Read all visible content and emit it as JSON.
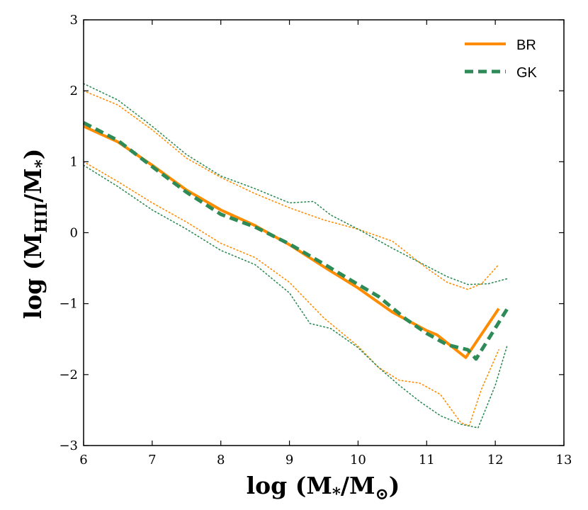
{
  "chart_data": {
    "type": "line",
    "title": "",
    "xlabel": {
      "prefix": "log (M",
      "sub1": "*",
      "mid": "/M",
      "sub2": "⊙",
      "suffix": ")"
    },
    "ylabel": {
      "prefix": "log (M",
      "sub1": "HII",
      "mid": "/M",
      "sub2": "*",
      "suffix": ")"
    },
    "xlim": [
      6,
      13
    ],
    "ylim": [
      -3,
      3
    ],
    "xticks": [
      6,
      7,
      8,
      9,
      10,
      11,
      12,
      13
    ],
    "yticks": [
      -3,
      -2,
      -1,
      0,
      1,
      2,
      3
    ],
    "xtick_labels": [
      "6",
      "7",
      "8",
      "9",
      "10",
      "11",
      "12",
      "13"
    ],
    "ytick_labels": [
      "−3",
      "−2",
      "−1",
      "0",
      "1",
      "2",
      "3"
    ],
    "grid": false,
    "legend_position": "top-right",
    "colors": {
      "BR": "#ff8c00",
      "GK": "#2e8b57"
    },
    "series": [
      {
        "name": "BR",
        "role": "median",
        "style": "solid",
        "x": [
          6.0,
          6.5,
          7.0,
          7.5,
          8.0,
          8.5,
          9.0,
          9.5,
          10.0,
          10.5,
          11.0,
          11.15,
          11.57,
          12.05
        ],
        "y": [
          1.5,
          1.28,
          0.95,
          0.6,
          0.32,
          0.1,
          -0.17,
          -0.48,
          -0.78,
          -1.12,
          -1.38,
          -1.44,
          -1.76,
          -1.07
        ]
      },
      {
        "name": "GK",
        "role": "median",
        "style": "dashed",
        "x": [
          6.0,
          6.5,
          7.0,
          7.5,
          8.0,
          8.5,
          9.0,
          9.5,
          10.0,
          10.3,
          10.7,
          11.0,
          11.3,
          11.6,
          11.72,
          12.17
        ],
        "y": [
          1.55,
          1.3,
          0.93,
          0.57,
          0.26,
          0.08,
          -0.16,
          -0.44,
          -0.73,
          -0.9,
          -1.22,
          -1.42,
          -1.58,
          -1.65,
          -1.78,
          -1.08
        ]
      },
      {
        "name": "BR",
        "role": "upper-percentile",
        "style": "dotted",
        "x": [
          6.0,
          6.5,
          7.0,
          7.5,
          8.0,
          8.5,
          9.0,
          9.5,
          10.0,
          10.5,
          11.0,
          11.3,
          11.6,
          11.8,
          12.05
        ],
        "y": [
          2.0,
          1.8,
          1.45,
          1.05,
          0.78,
          0.55,
          0.35,
          0.18,
          0.05,
          -0.12,
          -0.5,
          -0.7,
          -0.8,
          -0.72,
          -0.45
        ]
      },
      {
        "name": "BR",
        "role": "lower-percentile",
        "style": "dotted",
        "x": [
          6.0,
          6.5,
          7.0,
          7.5,
          8.0,
          8.5,
          9.0,
          9.5,
          10.0,
          10.3,
          10.6,
          10.9,
          11.2,
          11.5,
          11.62,
          11.8,
          12.05
        ],
        "y": [
          1.0,
          0.72,
          0.42,
          0.15,
          -0.15,
          -0.35,
          -0.7,
          -1.2,
          -1.6,
          -1.9,
          -2.08,
          -2.12,
          -2.28,
          -2.68,
          -2.72,
          -2.2,
          -1.65
        ]
      },
      {
        "name": "GK",
        "role": "upper-percentile",
        "style": "dotted",
        "x": [
          6.0,
          6.5,
          7.0,
          7.5,
          8.0,
          8.5,
          9.0,
          9.35,
          9.6,
          10.0,
          10.5,
          11.0,
          11.3,
          11.6,
          11.9,
          12.17
        ],
        "y": [
          2.1,
          1.87,
          1.5,
          1.1,
          0.8,
          0.62,
          0.42,
          0.44,
          0.25,
          0.05,
          -0.22,
          -0.47,
          -0.62,
          -0.73,
          -0.72,
          -0.65
        ]
      },
      {
        "name": "GK",
        "role": "lower-percentile",
        "style": "dotted",
        "x": [
          6.0,
          6.5,
          7.0,
          7.5,
          8.0,
          8.5,
          9.0,
          9.3,
          9.6,
          10.0,
          10.3,
          10.6,
          10.9,
          11.2,
          11.5,
          11.75,
          12.0,
          12.17
        ],
        "y": [
          0.95,
          0.65,
          0.32,
          0.05,
          -0.25,
          -0.45,
          -0.85,
          -1.28,
          -1.35,
          -1.62,
          -1.9,
          -2.15,
          -2.38,
          -2.58,
          -2.7,
          -2.75,
          -2.15,
          -1.6
        ]
      }
    ],
    "legend": [
      {
        "label": "BR",
        "style": "solid"
      },
      {
        "label": "GK",
        "style": "dashed"
      }
    ]
  }
}
